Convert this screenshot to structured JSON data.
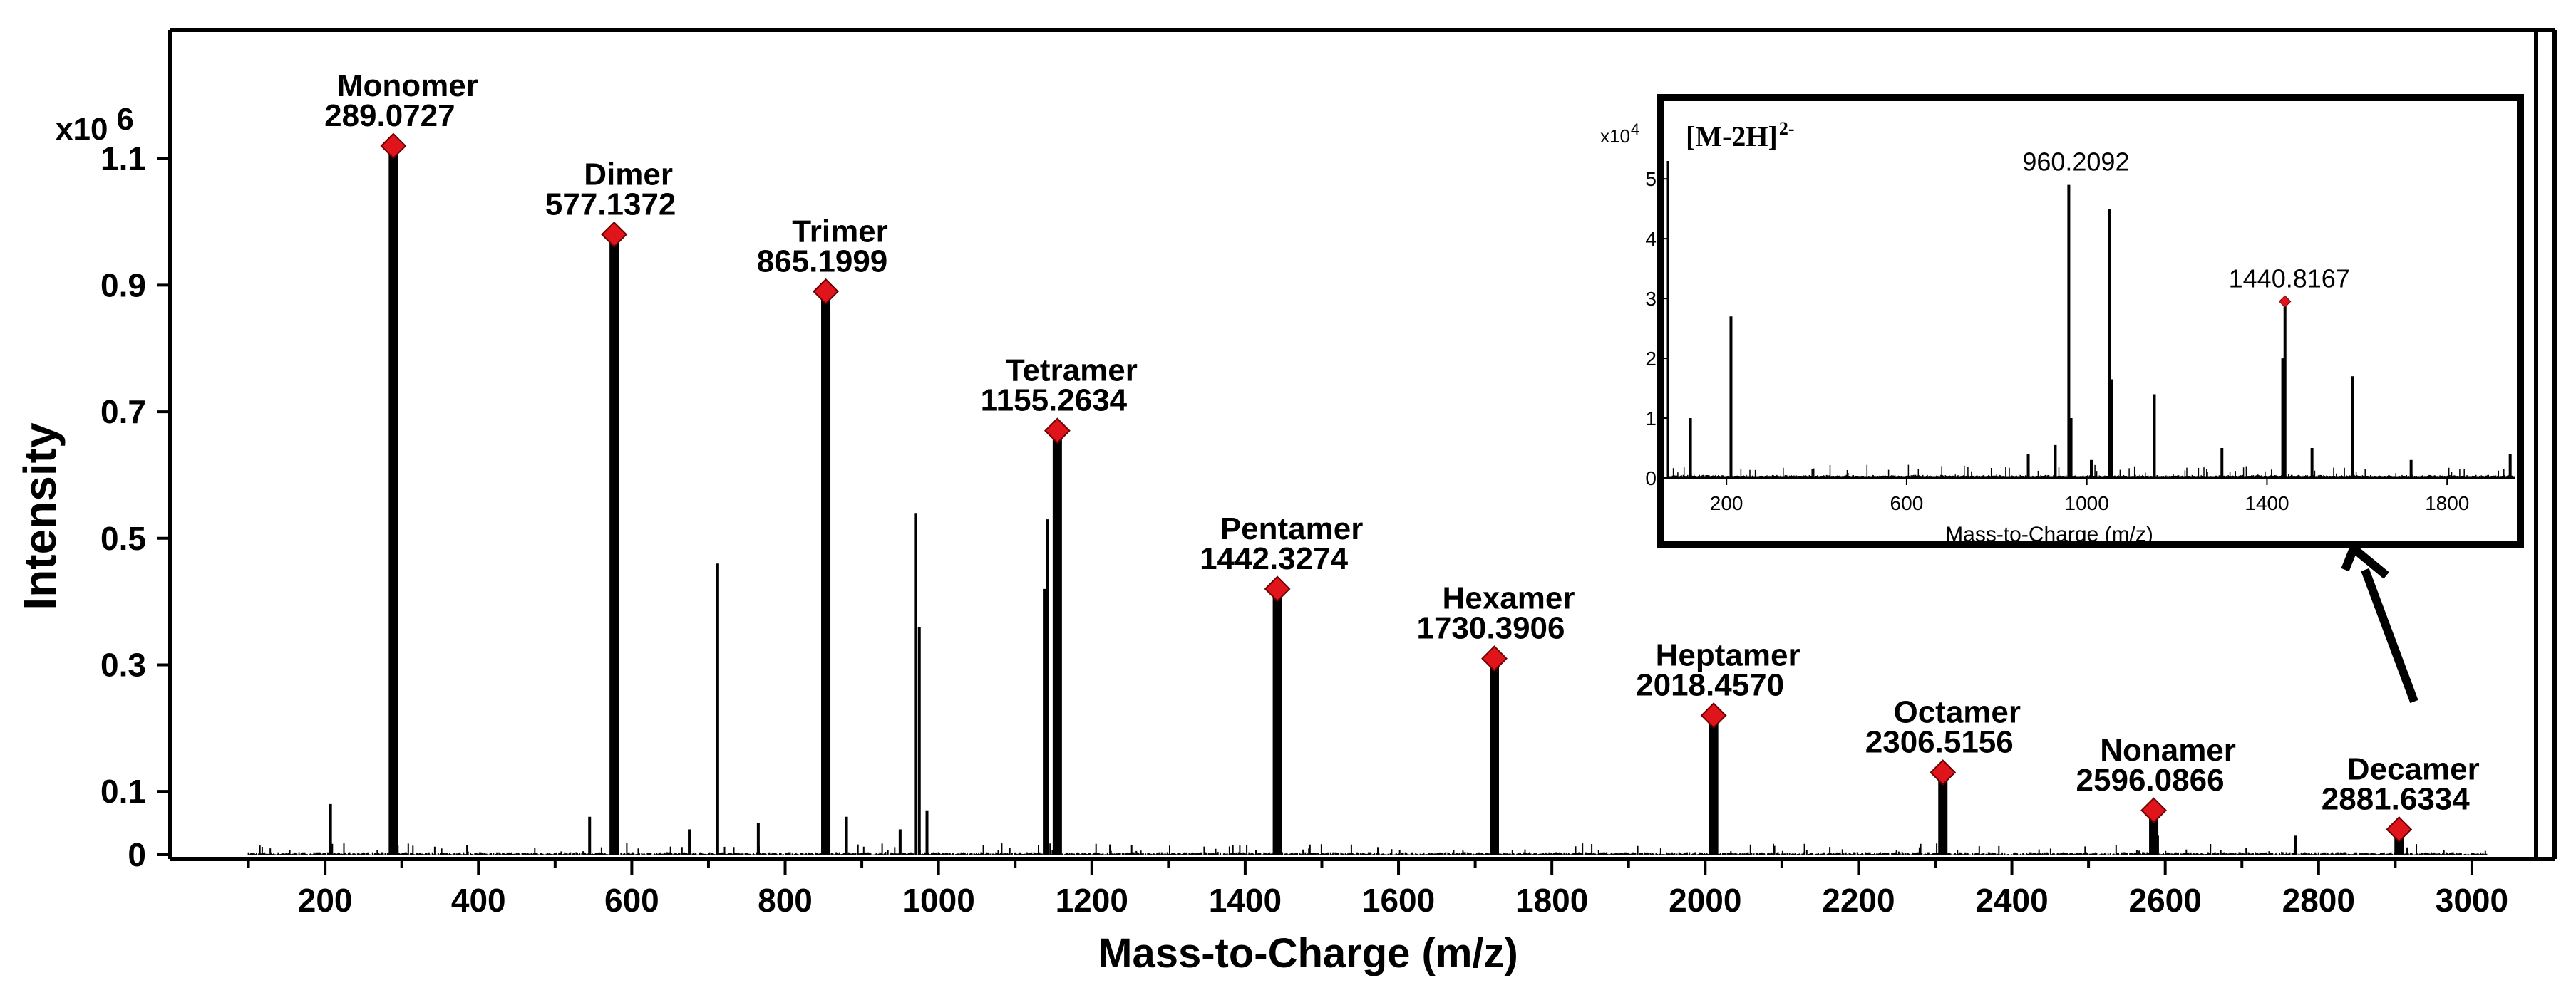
{
  "chart_data": [
    {
      "type": "line",
      "subtype": "mass-spectrum",
      "title": "",
      "xlabel": "Mass-to-Charge (m/z)",
      "ylabel": "Intensity",
      "y_multiplier": "x10",
      "y_multiplier_exp": "6",
      "xlim": [
        0,
        3080
      ],
      "ylim": [
        0,
        1.3
      ],
      "x_ticks": [
        200,
        400,
        600,
        800,
        1000,
        1200,
        1400,
        1600,
        1800,
        2000,
        2200,
        2400,
        2600,
        2800,
        3000
      ],
      "y_ticks": [
        0,
        0.1,
        0.3,
        0.5,
        0.7,
        0.9,
        1.1
      ],
      "y_tick_labels": [
        "0",
        "0.1",
        "0.3",
        "0.5",
        "0.7",
        "0.9",
        "1.1"
      ],
      "labeled_peaks": [
        {
          "name": "Monomer",
          "mz_label": "289.0727",
          "x": 289,
          "y": 1.12
        },
        {
          "name": "Dimer",
          "mz_label": "577.1372",
          "x": 577,
          "y": 0.98
        },
        {
          "name": "Trimer",
          "mz_label": "865.1999",
          "x": 853,
          "y": 0.89
        },
        {
          "name": "Tetramer",
          "mz_label": "1155.2634",
          "x": 1155,
          "y": 0.67
        },
        {
          "name": "Pentamer",
          "mz_label": "1442.3274",
          "x": 1442,
          "y": 0.42
        },
        {
          "name": "Hexamer",
          "mz_label": "1730.3906",
          "x": 1725,
          "y": 0.31
        },
        {
          "name": "Heptamer",
          "mz_label": "2018.4570",
          "x": 2011,
          "y": 0.22
        },
        {
          "name": "Octamer",
          "mz_label": "2306.5156",
          "x": 2310,
          "y": 0.13
        },
        {
          "name": "Nonamer",
          "mz_label": "2596.0866",
          "x": 2585,
          "y": 0.07
        },
        {
          "name": "Decamer",
          "mz_label": "2881.6334",
          "x": 2905,
          "y": 0.04
        }
      ],
      "minor_peaks": [
        {
          "x": 207,
          "y": 0.08
        },
        {
          "x": 545,
          "y": 0.06
        },
        {
          "x": 675,
          "y": 0.04
        },
        {
          "x": 712,
          "y": 0.46
        },
        {
          "x": 765,
          "y": 0.05
        },
        {
          "x": 880,
          "y": 0.06
        },
        {
          "x": 950,
          "y": 0.04
        },
        {
          "x": 970,
          "y": 0.54
        },
        {
          "x": 975,
          "y": 0.36
        },
        {
          "x": 985,
          "y": 0.07
        },
        {
          "x": 1138,
          "y": 0.42
        },
        {
          "x": 1142,
          "y": 0.53
        },
        {
          "x": 2312,
          "y": 0.09
        },
        {
          "x": 2590,
          "y": 0.03
        },
        {
          "x": 2770,
          "y": 0.03
        }
      ]
    },
    {
      "type": "line",
      "subtype": "mass-spectrum-inset",
      "title": "[M-2H]",
      "title_sup": "2-",
      "xlabel": "Mass-to-Charge (m/z)",
      "y_multiplier": "x10",
      "y_multiplier_exp": "4",
      "xlim": [
        70,
        1950
      ],
      "ylim": [
        0,
        5.3
      ],
      "x_ticks": [
        200,
        600,
        1000,
        1400,
        1800
      ],
      "y_ticks": [
        0,
        1,
        2,
        3,
        4,
        5
      ],
      "annotations": [
        {
          "text": "960.2092",
          "x": 960,
          "y": 4.9
        },
        {
          "text": "1440.8167",
          "x": 1440,
          "y": 2.95
        }
      ],
      "peaks": [
        {
          "x": 120,
          "y": 1.0
        },
        {
          "x": 210,
          "y": 2.7
        },
        {
          "x": 870,
          "y": 0.4
        },
        {
          "x": 930,
          "y": 0.55
        },
        {
          "x": 960,
          "y": 4.9
        },
        {
          "x": 965,
          "y": 1.0
        },
        {
          "x": 1010,
          "y": 0.3
        },
        {
          "x": 1050,
          "y": 4.5
        },
        {
          "x": 1055,
          "y": 1.65
        },
        {
          "x": 1150,
          "y": 1.4
        },
        {
          "x": 1300,
          "y": 0.5
        },
        {
          "x": 1435,
          "y": 2.0
        },
        {
          "x": 1440,
          "y": 2.95
        },
        {
          "x": 1500,
          "y": 0.5
        },
        {
          "x": 1590,
          "y": 1.7
        },
        {
          "x": 1720,
          "y": 0.3
        },
        {
          "x": 1940,
          "y": 0.4
        }
      ]
    }
  ],
  "colors": {
    "marker": "#e0141b",
    "line": "#000000"
  }
}
